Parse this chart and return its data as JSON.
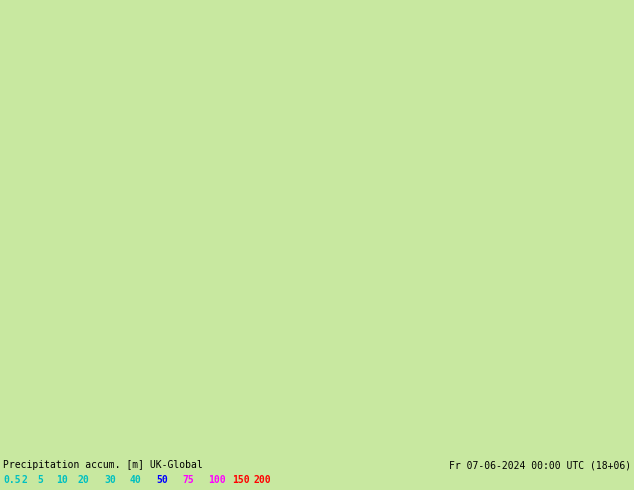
{
  "title_left": "Precipitation accum. [m] UK-Global",
  "title_right": "Fr 07-06-2024 00:00 UTC (18+06)",
  "scale_labels": [
    "0.5",
    "2",
    "5",
    "10",
    "20",
    "30",
    "40",
    "50",
    "75",
    "100",
    "150",
    "200"
  ],
  "scale_text_colors": [
    "#00c0c0",
    "#00c0c0",
    "#00c0c0",
    "#00c0c0",
    "#00c0c0",
    "#00c0c0",
    "#00c0c0",
    "#0000ff",
    "#ff00ff",
    "#ff00ff",
    "#ff0000",
    "#ff0000"
  ],
  "land_color": "#c8e8a0",
  "land_color_grey": "#d8d8d8",
  "sea_color": "#d8eef8",
  "border_color": "#808080",
  "thick_border_color": "#404040",
  "precip_cyan_light": "#b0f0f8",
  "precip_cyan_mid": "#70d8f0",
  "precip_blue_light": "#60b8e8",
  "precip_blue_mid": "#3090d8",
  "precip_blue_dark": "#1060c0",
  "precip_blue_deep": "#0040a0",
  "fig_width": 6.34,
  "fig_height": 4.9,
  "dpi": 100,
  "extent": [
    -10.5,
    30.5,
    42.5,
    62.0
  ]
}
